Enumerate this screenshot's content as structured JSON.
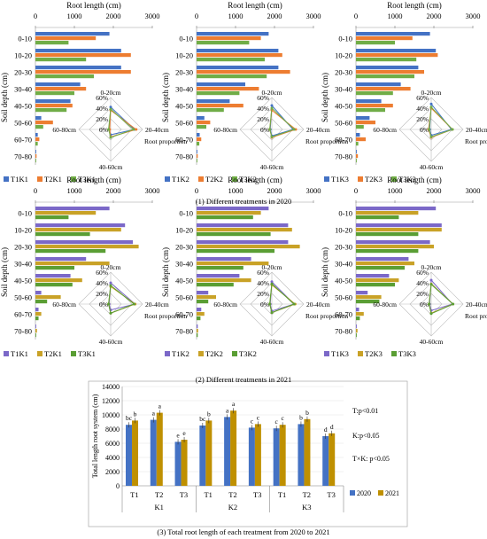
{
  "figure": {
    "captions": [
      "(1) Different treatments in 2020",
      "(2) Different treatments in 2021",
      "(3) Total root length of each treatment from 2020 to 2021"
    ]
  },
  "colors": {
    "T1": "#4472c4",
    "T2": "#ed7d31",
    "T3": "#70ad47",
    "T1_2021": "#7b68c8",
    "T2_2021": "#c9a227",
    "T3_2021": "#5a9e34",
    "y2020": "#4472c4",
    "y2021": "#bf9000"
  },
  "chart_data": [
    {
      "type": "bar",
      "orientation": "horizontal",
      "panel": "2020-K1",
      "xlabel": "Root length (cm)",
      "ylabel": "Soil depth (cm)",
      "xticks": [
        "0",
        "1000",
        "2000",
        "3000"
      ],
      "xlim": [
        0,
        3000
      ],
      "categories": [
        "0-10",
        "10-20",
        "20-30",
        "30-40",
        "40-50",
        "50-60",
        "60-70",
        "70-80"
      ],
      "series": [
        {
          "name": "T1K1",
          "values": [
            1900,
            2200,
            2200,
            1150,
            900,
            150,
            60,
            20
          ]
        },
        {
          "name": "T2K1",
          "values": [
            1550,
            2450,
            2450,
            1300,
            950,
            450,
            100,
            30
          ]
        },
        {
          "name": "T3K1",
          "values": [
            850,
            1300,
            1500,
            1000,
            800,
            200,
            60,
            20
          ]
        }
      ],
      "radar": {
        "axes": [
          "0-20cm",
          "20-40cm",
          "40-60cm",
          "60-80cm"
        ],
        "ticks": [
          "0%",
          "20%",
          "40%",
          "60%"
        ],
        "label": "Root proportion",
        "series": [
          [
            0.42,
            0.45,
            0.1,
            0.03
          ],
          [
            0.36,
            0.48,
            0.14,
            0.02
          ],
          [
            0.38,
            0.43,
            0.15,
            0.04
          ]
        ]
      }
    },
    {
      "type": "bar",
      "orientation": "horizontal",
      "panel": "2020-K2",
      "xlabel": "Root length (cm)",
      "ylabel": "Soil depth (cm)",
      "xticks": [
        "0",
        "1000",
        "2000",
        "3000"
      ],
      "xlim": [
        0,
        3000
      ],
      "categories": [
        "0-10",
        "10-20",
        "20-30",
        "30-40",
        "40-50",
        "50-60",
        "60-70",
        "70-80"
      ],
      "series": [
        {
          "name": "T1K2",
          "values": [
            1850,
            2100,
            2100,
            1250,
            850,
            200,
            80,
            20
          ]
        },
        {
          "name": "T2K2",
          "values": [
            1650,
            2200,
            2400,
            1600,
            1200,
            350,
            120,
            30
          ]
        },
        {
          "name": "T3K2",
          "values": [
            1350,
            1750,
            1800,
            1100,
            700,
            250,
            70,
            20
          ]
        }
      ],
      "radar": {
        "axes": [
          "0-20cm",
          "20-40cm",
          "40-60cm",
          "60-80cm"
        ],
        "ticks": [
          "0%",
          "20%",
          "40%",
          "60%"
        ],
        "label": "Root proportion",
        "series": [
          [
            0.45,
            0.4,
            0.12,
            0.03
          ],
          [
            0.36,
            0.45,
            0.15,
            0.04
          ],
          [
            0.4,
            0.42,
            0.14,
            0.04
          ]
        ]
      }
    },
    {
      "type": "bar",
      "orientation": "horizontal",
      "panel": "2020-K3",
      "xlabel": "Root length (cm)",
      "ylabel": "Soil depth (cm)",
      "xticks": [
        "0",
        "1000",
        "2000",
        "3000"
      ],
      "xlim": [
        0,
        3000
      ],
      "categories": [
        "0-10",
        "10-20",
        "20-30",
        "30-40",
        "40-50",
        "50-60",
        "60-70",
        "70-80"
      ],
      "series": [
        {
          "name": "T1K3",
          "values": [
            1900,
            2050,
            1600,
            1150,
            650,
            350,
            100,
            20
          ]
        },
        {
          "name": "T2K3",
          "values": [
            1450,
            2100,
            1750,
            1400,
            950,
            500,
            250,
            50
          ]
        },
        {
          "name": "T3K3",
          "values": [
            1000,
            1550,
            1500,
            950,
            750,
            200,
            60,
            20
          ]
        }
      ],
      "radar": {
        "axes": [
          "0-20cm",
          "20-40cm",
          "40-60cm",
          "60-80cm"
        ],
        "ticks": [
          "0%",
          "20%",
          "40%",
          "60%"
        ],
        "label": "Root proportion",
        "series": [
          [
            0.48,
            0.38,
            0.11,
            0.03
          ],
          [
            0.4,
            0.4,
            0.15,
            0.05
          ],
          [
            0.42,
            0.4,
            0.14,
            0.04
          ]
        ]
      }
    },
    {
      "type": "bar",
      "orientation": "horizontal",
      "panel": "2021-K1",
      "xlabel": "Root length (cm)",
      "ylabel": "Soil depth (cm)",
      "xticks": [
        "0",
        "1000",
        "2000",
        "3000"
      ],
      "xlim": [
        0,
        3000
      ],
      "categories": [
        "0-10",
        "10-20",
        "20-30",
        "30-40",
        "40-50",
        "50-60",
        "60-70",
        "70-80"
      ],
      "series": [
        {
          "name": "T1K1",
          "values": [
            1900,
            2300,
            2500,
            1300,
            900,
            150,
            80,
            20
          ]
        },
        {
          "name": "T2K1",
          "values": [
            1550,
            2200,
            2650,
            1900,
            1200,
            650,
            150,
            40
          ]
        },
        {
          "name": "T3K1",
          "values": [
            850,
            1400,
            1800,
            1000,
            950,
            300,
            80,
            20
          ]
        }
      ],
      "radar": {
        "axes": [
          "0-20cm",
          "20-40cm",
          "40-60cm",
          "60-80cm"
        ],
        "ticks": [
          "0%",
          "20%",
          "40%",
          "60%"
        ],
        "label": "Root proportion",
        "series": [
          [
            0.4,
            0.46,
            0.11,
            0.03
          ],
          [
            0.33,
            0.46,
            0.17,
            0.04
          ],
          [
            0.35,
            0.44,
            0.17,
            0.04
          ]
        ]
      }
    },
    {
      "type": "bar",
      "orientation": "horizontal",
      "panel": "2021-K2",
      "xlabel": "Root length (cm)",
      "ylabel": "Soil depth (cm)",
      "xticks": [
        "0",
        "1000",
        "2000",
        "3000"
      ],
      "xlim": [
        0,
        3000
      ],
      "categories": [
        "0-10",
        "10-20",
        "20-30",
        "30-40",
        "40-50",
        "50-60",
        "60-70",
        "70-80"
      ],
      "series": [
        {
          "name": "T1K2",
          "values": [
            1850,
            2350,
            2350,
            1400,
            1100,
            300,
            120,
            30
          ]
        },
        {
          "name": "T2K2",
          "values": [
            1650,
            2450,
            2650,
            1850,
            1400,
            500,
            200,
            40
          ]
        },
        {
          "name": "T3K2",
          "values": [
            1450,
            1900,
            2000,
            1200,
            950,
            300,
            100,
            30
          ]
        }
      ],
      "radar": {
        "axes": [
          "0-20cm",
          "20-40cm",
          "40-60cm",
          "60-80cm"
        ],
        "ticks": [
          "0%",
          "20%",
          "40%",
          "60%"
        ],
        "label": "Root proportion",
        "series": [
          [
            0.42,
            0.42,
            0.13,
            0.03
          ],
          [
            0.36,
            0.44,
            0.16,
            0.04
          ],
          [
            0.38,
            0.42,
            0.16,
            0.04
          ]
        ]
      }
    },
    {
      "type": "bar",
      "orientation": "horizontal",
      "panel": "2021-K3",
      "xlabel": "Root length (cm)",
      "ylabel": "Soil depth (cm)",
      "xticks": [
        "0",
        "1000",
        "2000",
        "3000"
      ],
      "xlim": [
        0,
        3000
      ],
      "categories": [
        "0-10",
        "10-20",
        "20-30",
        "30-40",
        "40-50",
        "50-60",
        "60-70",
        "70-80"
      ],
      "series": [
        {
          "name": "T1K3",
          "values": [
            2050,
            2200,
            1900,
            1350,
            850,
            300,
            80,
            20
          ]
        },
        {
          "name": "T2K3",
          "values": [
            1600,
            2200,
            2000,
            1500,
            1100,
            650,
            200,
            40
          ]
        },
        {
          "name": "T3K3",
          "values": [
            1100,
            1600,
            1600,
            1250,
            1000,
            600,
            100,
            20
          ]
        }
      ],
      "radar": {
        "axes": [
          "0-20cm",
          "20-40cm",
          "40-60cm",
          "60-80cm"
        ],
        "ticks": [
          "0%",
          "20%",
          "40%",
          "60%"
        ],
        "label": "Root proportion",
        "series": [
          [
            0.45,
            0.4,
            0.12,
            0.03
          ],
          [
            0.38,
            0.41,
            0.17,
            0.04
          ],
          [
            0.37,
            0.41,
            0.18,
            0.04
          ]
        ]
      }
    },
    {
      "type": "bar",
      "panel": "total",
      "ylabel": "Total length root system (cm)",
      "ylim": [
        0,
        14000
      ],
      "yticks": [
        "0",
        "2000",
        "4000",
        "6000",
        "8000",
        "10000",
        "12000",
        "14000"
      ],
      "categories": [
        "T1",
        "T2",
        "T3",
        "T1",
        "T2",
        "T3",
        "T1",
        "T2",
        "T3"
      ],
      "groups": [
        "K1",
        "K2",
        "K3"
      ],
      "series": [
        {
          "name": "2020",
          "values": [
            8600,
            9300,
            6200,
            8500,
            9700,
            8200,
            8100,
            8700,
            7000
          ]
        },
        {
          "name": "2021",
          "values": [
            9200,
            10300,
            6500,
            9200,
            10600,
            8700,
            8600,
            9400,
            7400
          ]
        }
      ],
      "letters": [
        [
          "bc",
          "b"
        ],
        [
          "a",
          "a"
        ],
        [
          "e",
          "e"
        ],
        [
          "bc",
          "b"
        ],
        [
          "a",
          "a"
        ],
        [
          "c",
          "c"
        ],
        [
          "c",
          "c"
        ],
        [
          "b",
          "b"
        ],
        [
          "d",
          "d"
        ]
      ],
      "annotations": [
        "T:p<0.01",
        "K:p<0.05",
        "T×K:  p<0.05"
      ]
    }
  ]
}
